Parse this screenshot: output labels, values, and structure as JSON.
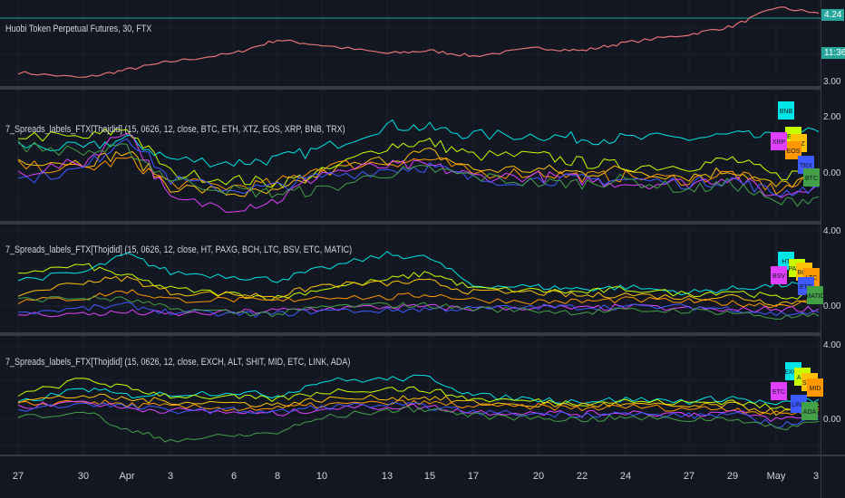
{
  "panes": {
    "main": {
      "title": "Huobi Token Perpetual Futures, 30, FTX",
      "price_current": "4.24",
      "countdown": "11:36",
      "low_label": "3.00"
    },
    "spreads1": {
      "title": "7_Spreads_labels_FTX[Thojdid] (15, 0626, 12, close, BTC, ETH, XTZ, EOS, XRP, BNB, TRX)",
      "tick_top": "2.00",
      "tick_mid": "0.00"
    },
    "spreads2": {
      "title": "7_Spreads_labels_FTX[Thojdid] (15, 0626, 12, close, HT, PAXG, BCH, LTC, BSV, ETC, MATIC)",
      "tick_top": "4.00",
      "tick_mid": "0.00"
    },
    "spreads3": {
      "title": "7_Spreads_labels_FTX[Thojdid] (15, 0626, 12, close, EXCH, ALT, SHIT, MID, ETC, LINK, ADA)",
      "tick_top": "4.00",
      "tick_mid": "0.00"
    }
  },
  "x_axis": {
    "labels": [
      "27",
      "30",
      "Apr",
      "3",
      "6",
      "8",
      "10",
      "13",
      "15",
      "17",
      "20",
      "22",
      "24",
      "27",
      "29",
      "May",
      "3"
    ]
  },
  "label_boxes": {
    "spreads1": [
      "BNB",
      "ETH",
      "XTZ",
      "EOS",
      "XRP",
      "TRX",
      "BTC"
    ],
    "spreads2": [
      "HT",
      "PAXG",
      "BCH",
      "LTC",
      "BSV",
      "ETC",
      "MATIC"
    ],
    "spreads3": [
      "EXCH",
      "ALT",
      "SHIT",
      "MID",
      "ETC",
      "LINK",
      "ADA"
    ]
  },
  "colors": {
    "background": "#131722",
    "main_line": "#e57373",
    "price_tag": "#26a69a",
    "pane_separator": "#363a45",
    "series": [
      "#00e5e5",
      "#c6ff00",
      "#ffc107",
      "#ff9800",
      "#e040fb",
      "#3d5afe",
      "#43a047"
    ]
  },
  "chart_data": [
    {
      "type": "line",
      "title": "Huobi Token Perpetual Futures, 30, FTX",
      "x": [
        "27",
        "30",
        "Apr",
        "3",
        "6",
        "8",
        "10",
        "13",
        "15",
        "17",
        "20",
        "22",
        "24",
        "27",
        "29",
        "May",
        "3"
      ],
      "series": [
        {
          "values": [
            3.15,
            3.05,
            3.2,
            3.35,
            3.5,
            3.75,
            3.65,
            3.5,
            3.55,
            3.45,
            3.6,
            3.55,
            3.7,
            3.85,
            4.0,
            4.35,
            4.24
          ]
        }
      ],
      "ylim": [
        2.9,
        4.45
      ]
    },
    {
      "type": "line",
      "title": "7_Spreads_labels_FTX[Thojdid] (15, 0626, 12, close, BTC, ETH, XTZ, EOS, XRP, BNB, TRX)",
      "ylim": [
        -1.2,
        2.6
      ],
      "series": [
        {
          "name": "BNB",
          "values": [
            1.0,
            0.9,
            1.2,
            0.6,
            0.5,
            0.6,
            0.9,
            1.6,
            1.5,
            1.3,
            1.3,
            1.2,
            1.2,
            1.2,
            1.3,
            1.2,
            1.4
          ]
        },
        {
          "name": "ETH",
          "values": [
            1.3,
            1.2,
            1.5,
            0.2,
            0.0,
            -0.1,
            0.2,
            1.0,
            1.1,
            0.7,
            0.7,
            0.5,
            0.4,
            0.4,
            0.6,
            0.1,
            0.3
          ]
        },
        {
          "name": "XTZ",
          "values": [
            0.6,
            0.5,
            0.8,
            -0.2,
            -0.4,
            -0.4,
            0.2,
            0.6,
            0.8,
            0.3,
            0.3,
            0.2,
            0.3,
            0.1,
            0.3,
            -0.2,
            0.1
          ]
        },
        {
          "name": "EOS",
          "values": [
            0.4,
            0.3,
            0.6,
            -0.1,
            -0.2,
            -0.1,
            0.4,
            0.5,
            0.6,
            0.2,
            0.2,
            0.1,
            0.1,
            0.0,
            0.2,
            -0.3,
            0.0
          ]
        },
        {
          "name": "XRP",
          "values": [
            0.2,
            0.5,
            1.5,
            -0.6,
            -0.8,
            -0.6,
            0.2,
            0.4,
            0.4,
            0.1,
            0.1,
            0.0,
            -0.1,
            -0.1,
            0.1,
            -0.5,
            -0.1
          ]
        },
        {
          "name": "TRX",
          "values": [
            0.0,
            0.3,
            1.3,
            0.0,
            -0.3,
            -0.2,
            0.1,
            0.3,
            0.4,
            0.0,
            0.0,
            0.0,
            0.0,
            -0.1,
            0.0,
            -0.4,
            -0.2
          ]
        },
        {
          "name": "BTC",
          "values": [
            1.0,
            0.8,
            0.9,
            0.0,
            -0.3,
            -0.4,
            -0.3,
            0.2,
            0.3,
            0.1,
            -0.1,
            -0.1,
            0.0,
            -0.3,
            -0.1,
            -0.7,
            -0.5
          ]
        }
      ]
    },
    {
      "type": "line",
      "title": "7_Spreads_labels_FTX[Thojdid] (15, 0626, 12, close, HT, PAXG, BCH, LTC, BSV, ETC, MATIC)",
      "ylim": [
        -1.3,
        4.6
      ],
      "series": [
        {
          "name": "HT",
          "values": [
            1.6,
            2.0,
            3.0,
            2.0,
            1.8,
            1.6,
            2.2,
            3.0,
            2.8,
            1.3,
            1.2,
            1.1,
            1.2,
            0.9,
            1.1,
            1.3,
            1.4
          ]
        },
        {
          "name": "PAXG",
          "values": [
            2.0,
            2.4,
            1.8,
            1.1,
            0.8,
            0.6,
            1.1,
            1.6,
            2.0,
            1.1,
            1.0,
            0.9,
            1.1,
            0.8,
            1.0,
            0.6,
            0.8
          ]
        },
        {
          "name": "BCH",
          "values": [
            0.8,
            1.5,
            1.7,
            0.9,
            0.8,
            0.7,
            1.3,
            1.4,
            1.5,
            0.9,
            0.9,
            0.7,
            0.8,
            0.6,
            0.7,
            0.3,
            0.5
          ]
        },
        {
          "name": "LTC",
          "values": [
            0.4,
            0.6,
            1.0,
            0.5,
            0.5,
            0.4,
            0.7,
            0.6,
            0.8,
            0.5,
            0.4,
            0.4,
            0.5,
            0.4,
            0.3,
            0.2,
            0.4
          ]
        },
        {
          "name": "BSV",
          "values": [
            -0.3,
            -0.3,
            -0.2,
            -0.3,
            -0.2,
            -0.1,
            0.0,
            0.1,
            0.1,
            0.0,
            0.1,
            0.0,
            0.1,
            0.0,
            -0.1,
            0.0,
            0.0
          ]
        },
        {
          "name": "ETC",
          "values": [
            -0.2,
            0.0,
            0.2,
            -0.2,
            -0.3,
            -0.3,
            -0.1,
            -0.1,
            0.0,
            0.0,
            0.1,
            0.1,
            0.1,
            0.1,
            0.0,
            -0.3,
            -0.2
          ]
        },
        {
          "name": "MATIC",
          "values": [
            0.5,
            0.6,
            0.5,
            0.0,
            -0.2,
            -0.3,
            0.1,
            0.2,
            0.2,
            0.0,
            -0.1,
            -0.2,
            -0.1,
            -0.1,
            -0.2,
            -0.5,
            -0.4
          ]
        }
      ]
    },
    {
      "type": "line",
      "title": "7_Spreads_labels_FTX[Thojdid] (15, 0626, 12, close, EXCH, ALT, SHIT, MID, ETC, LINK, ADA)",
      "ylim": [
        -1.8,
        4.6
      ],
      "series": [
        {
          "name": "EXCH",
          "values": [
            1.0,
            1.8,
            1.4,
            1.5,
            1.6,
            1.4,
            2.2,
            2.3,
            2.4,
            1.4,
            1.2,
            1.1,
            1.2,
            1.1,
            1.3,
            0.9,
            1.2
          ]
        },
        {
          "name": "ALT",
          "values": [
            1.4,
            2.3,
            1.8,
            1.4,
            1.3,
            1.2,
            1.6,
            1.8,
            1.7,
            1.2,
            1.1,
            1.0,
            1.1,
            1.0,
            1.1,
            0.7,
            0.9
          ]
        },
        {
          "name": "SHIT",
          "values": [
            1.1,
            1.4,
            1.2,
            1.1,
            1.0,
            0.9,
            1.2,
            1.3,
            1.3,
            1.0,
            0.9,
            0.9,
            0.9,
            0.8,
            0.9,
            0.5,
            0.7
          ]
        },
        {
          "name": "MID",
          "values": [
            0.9,
            1.1,
            0.9,
            0.8,
            0.7,
            0.7,
            0.9,
            1.0,
            1.0,
            0.8,
            0.8,
            0.7,
            0.8,
            0.7,
            0.7,
            0.4,
            0.6
          ]
        },
        {
          "name": "ETC",
          "values": [
            0.8,
            1.1,
            0.7,
            0.6,
            0.5,
            0.4,
            0.7,
            0.8,
            0.8,
            0.5,
            0.5,
            0.4,
            0.5,
            0.4,
            0.5,
            0.1,
            0.3
          ]
        },
        {
          "name": "LINK",
          "values": [
            0.6,
            1.0,
            0.8,
            0.6,
            0.6,
            0.5,
            0.8,
            0.9,
            0.8,
            0.5,
            0.4,
            0.4,
            0.4,
            0.3,
            0.4,
            -0.2,
            0.1
          ]
        },
        {
          "name": "ADA",
          "values": [
            0.2,
            0.6,
            -0.5,
            -1.0,
            -0.8,
            -0.6,
            0.2,
            0.6,
            0.7,
            0.3,
            0.2,
            0.1,
            0.2,
            0.1,
            0.2,
            -0.4,
            0.0
          ]
        }
      ]
    }
  ]
}
